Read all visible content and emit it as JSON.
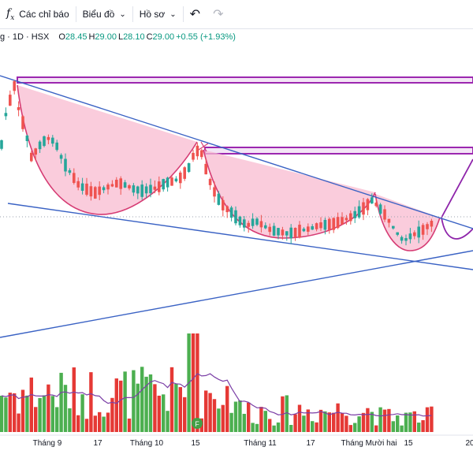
{
  "toolbar": {
    "indicators_label": "Các chỉ báo",
    "chart_label": "Biểu đồ",
    "profile_label": "Hồ sơ"
  },
  "legend": {
    "symbol": "g · 1D · HSX",
    "open_key": "O",
    "open": "28.45",
    "high_key": "H",
    "high": "29.00",
    "low_key": "L",
    "low": "28.10",
    "close_key": "C",
    "close": "29.00",
    "change": "+0.55 (+1.93%)"
  },
  "chart_data": {
    "type": "candlestick",
    "interval": "1D",
    "exchange": "HSX",
    "last_bar": {
      "open": 28.45,
      "high": 29.0,
      "low": 28.1,
      "close": 29.0,
      "change": 0.55,
      "change_pct": 1.93
    },
    "x_tick_labels": [
      "Tháng 9",
      "17",
      "Tháng 10",
      "15",
      "Tháng 11",
      "17",
      "Tháng Mười hai",
      "15",
      "20"
    ],
    "colors": {
      "up": "#26a69a",
      "down": "#ef5350",
      "volume_up": "#4caf50",
      "volume_down": "#e53935",
      "trendline": "#3a62c4",
      "cup_fill": "#f8bbd0",
      "cup_line": "#d63c74",
      "zone": "#9c27b0",
      "volume_ma": "#7b3fa6"
    }
  }
}
